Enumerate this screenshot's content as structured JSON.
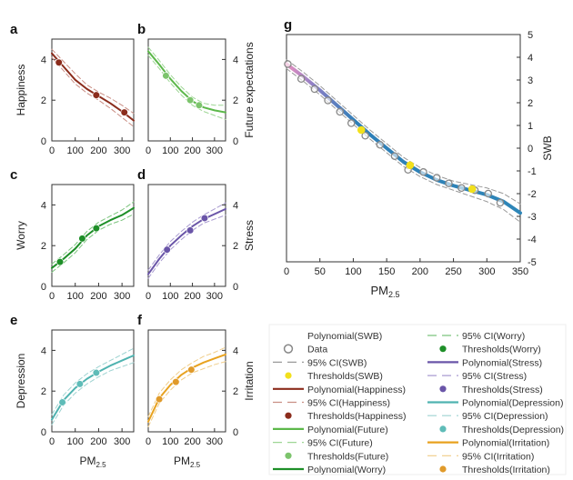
{
  "chart_data": [
    {
      "id": "a",
      "panel_label": "a",
      "type": "line",
      "ylabel": "Happiness",
      "ylabel_side": "left",
      "xlabel": "",
      "xlim": [
        0,
        350
      ],
      "ylim": [
        0,
        5
      ],
      "xticks": [
        0,
        100,
        200,
        300
      ],
      "yticks": [
        0,
        2,
        4
      ],
      "colors": {
        "line": "#8b2c1c",
        "ci": "#c98e84",
        "threshold": "#8b2c1c"
      },
      "x": [
        0,
        50,
        100,
        150,
        200,
        250,
        300,
        350
      ],
      "series": [
        {
          "values": [
            4.3,
            3.65,
            3.0,
            2.55,
            2.2,
            1.85,
            1.45,
            1.0
          ]
        },
        {
          "role": "ci_upper",
          "values": [
            4.5,
            3.9,
            3.3,
            2.75,
            2.4,
            2.1,
            1.75,
            1.35
          ]
        },
        {
          "role": "ci_lower",
          "values": [
            4.1,
            3.45,
            2.8,
            2.35,
            2.0,
            1.6,
            1.15,
            0.7
          ]
        }
      ],
      "thresholds": [
        {
          "x": 30,
          "y": 3.85
        },
        {
          "x": 190,
          "y": 2.25
        },
        {
          "x": 310,
          "y": 1.4
        }
      ]
    },
    {
      "id": "b",
      "panel_label": "b",
      "type": "line",
      "ylabel": "Future expectations",
      "ylabel_side": "right",
      "xlabel": "",
      "xlim": [
        0,
        350
      ],
      "ylim": [
        0,
        5
      ],
      "xticks": [
        0,
        100,
        200,
        300
      ],
      "yticks": [
        0,
        2,
        4
      ],
      "colors": {
        "line": "#5cb84a",
        "ci": "#9ed695",
        "threshold": "#7cc46c"
      },
      "x": [
        0,
        50,
        100,
        150,
        200,
        250,
        300,
        350
      ],
      "series": [
        {
          "values": [
            4.4,
            3.75,
            3.05,
            2.45,
            1.95,
            1.65,
            1.5,
            1.4
          ]
        },
        {
          "role": "ci_upper",
          "values": [
            4.6,
            3.95,
            3.25,
            2.65,
            2.15,
            1.85,
            1.75,
            1.75
          ]
        },
        {
          "role": "ci_lower",
          "values": [
            4.2,
            3.55,
            2.85,
            2.25,
            1.75,
            1.45,
            1.25,
            1.05
          ]
        }
      ],
      "thresholds": [
        {
          "x": 80,
          "y": 3.2
        },
        {
          "x": 190,
          "y": 2.0
        },
        {
          "x": 230,
          "y": 1.75
        }
      ]
    },
    {
      "id": "c",
      "panel_label": "c",
      "type": "line",
      "ylabel": "Worry",
      "ylabel_side": "left",
      "xlabel": "",
      "xlim": [
        0,
        350
      ],
      "ylim": [
        0,
        5
      ],
      "xticks": [
        0,
        100,
        200,
        300
      ],
      "yticks": [
        0,
        2,
        4
      ],
      "colors": {
        "line": "#1e8f28",
        "ci": "#7cc47e",
        "threshold": "#1e8f28"
      },
      "x": [
        0,
        50,
        100,
        150,
        200,
        250,
        300,
        350
      ],
      "series": [
        {
          "values": [
            0.9,
            1.35,
            1.85,
            2.5,
            2.95,
            3.25,
            3.5,
            3.85
          ]
        },
        {
          "role": "ci_upper",
          "values": [
            1.1,
            1.55,
            2.05,
            2.7,
            3.15,
            3.45,
            3.75,
            4.15
          ]
        },
        {
          "role": "ci_lower",
          "values": [
            0.7,
            1.15,
            1.65,
            2.3,
            2.75,
            3.05,
            3.25,
            3.55
          ]
        }
      ],
      "thresholds": [
        {
          "x": 35,
          "y": 1.2
        },
        {
          "x": 130,
          "y": 2.35
        },
        {
          "x": 190,
          "y": 2.85
        }
      ]
    },
    {
      "id": "d",
      "panel_label": "d",
      "type": "line",
      "ylabel": "Stress",
      "ylabel_side": "right",
      "xlabel": "",
      "xlim": [
        0,
        350
      ],
      "ylim": [
        0,
        5
      ],
      "xticks": [
        0,
        100,
        200,
        300
      ],
      "yticks": [
        0,
        2,
        4
      ],
      "colors": {
        "line": "#6a55a8",
        "ci": "#a99bd0",
        "threshold": "#6a55a8"
      },
      "x": [
        0,
        50,
        100,
        150,
        200,
        250,
        300,
        350
      ],
      "series": [
        {
          "values": [
            0.6,
            1.35,
            2.0,
            2.5,
            2.95,
            3.3,
            3.55,
            3.8
          ]
        },
        {
          "role": "ci_upper",
          "values": [
            0.8,
            1.55,
            2.2,
            2.7,
            3.15,
            3.5,
            3.8,
            4.1
          ]
        },
        {
          "role": "ci_lower",
          "values": [
            0.4,
            1.15,
            1.8,
            2.3,
            2.75,
            3.1,
            3.3,
            3.5
          ]
        }
      ],
      "thresholds": [
        {
          "x": 85,
          "y": 1.8
        },
        {
          "x": 190,
          "y": 2.75
        },
        {
          "x": 255,
          "y": 3.35
        }
      ]
    },
    {
      "id": "e",
      "panel_label": "e",
      "type": "line",
      "ylabel": "Depression",
      "ylabel_side": "left",
      "xlabel": "PM2.5",
      "xlim": [
        0,
        350
      ],
      "ylim": [
        0,
        5
      ],
      "xticks": [
        0,
        100,
        200,
        300
      ],
      "yticks": [
        0,
        2,
        4
      ],
      "colors": {
        "line": "#4fb3b0",
        "ci": "#9ed3d1",
        "threshold": "#5fbcb8"
      },
      "x": [
        0,
        50,
        100,
        150,
        200,
        250,
        300,
        350
      ],
      "series": [
        {
          "values": [
            0.6,
            1.55,
            2.15,
            2.6,
            2.95,
            3.25,
            3.5,
            3.75
          ]
        },
        {
          "role": "ci_upper",
          "values": [
            0.85,
            1.8,
            2.4,
            2.85,
            3.2,
            3.5,
            3.8,
            4.1
          ]
        },
        {
          "role": "ci_lower",
          "values": [
            0.35,
            1.3,
            1.9,
            2.35,
            2.7,
            3.0,
            3.2,
            3.4
          ]
        }
      ],
      "thresholds": [
        {
          "x": 45,
          "y": 1.45
        },
        {
          "x": 120,
          "y": 2.35
        },
        {
          "x": 190,
          "y": 2.9
        }
      ]
    },
    {
      "id": "f",
      "panel_label": "f",
      "type": "line",
      "ylabel": "Irritation",
      "ylabel_side": "right",
      "xlabel": "PM2.5",
      "xlim": [
        0,
        350
      ],
      "ylim": [
        0,
        5
      ],
      "xticks": [
        0,
        100,
        200,
        300
      ],
      "yticks": [
        0,
        2,
        4
      ],
      "colors": {
        "line": "#e8a21f",
        "ci": "#f0cd88",
        "threshold": "#e09a2a"
      },
      "x": [
        0,
        50,
        100,
        150,
        200,
        250,
        300,
        350
      ],
      "series": [
        {
          "values": [
            0.5,
            1.65,
            2.3,
            2.8,
            3.15,
            3.4,
            3.6,
            3.8
          ]
        },
        {
          "role": "ci_upper",
          "values": [
            0.75,
            1.9,
            2.55,
            3.05,
            3.4,
            3.7,
            3.9,
            4.15
          ]
        },
        {
          "role": "ci_lower",
          "values": [
            0.25,
            1.4,
            2.05,
            2.55,
            2.9,
            3.1,
            3.3,
            3.45
          ]
        }
      ],
      "thresholds": [
        {
          "x": 50,
          "y": 1.6
        },
        {
          "x": 125,
          "y": 2.45
        },
        {
          "x": 195,
          "y": 3.05
        }
      ]
    },
    {
      "id": "g",
      "panel_label": "g",
      "type": "line",
      "ylabel": "SWB",
      "ylabel_side": "right",
      "xlabel": "PM2.5",
      "xlim": [
        0,
        350
      ],
      "ylim": [
        -5,
        5
      ],
      "xticks": [
        0,
        50,
        100,
        150,
        200,
        250,
        300,
        350
      ],
      "yticks": [
        -5,
        -4,
        -3,
        -2,
        -1,
        0,
        1,
        2,
        3,
        4,
        5
      ],
      "colors": {
        "line": "#2e7fb8",
        "line_start": "#e98fc0",
        "ci": "#999999",
        "data": "#888888",
        "threshold": "#f2e01c"
      },
      "x": [
        0,
        25,
        50,
        75,
        100,
        125,
        150,
        175,
        200,
        225,
        250,
        275,
        300,
        325,
        350
      ],
      "series": [
        {
          "name": "Polynomial(SWB)",
          "values": [
            3.7,
            3.15,
            2.55,
            1.9,
            1.25,
            0.6,
            0.0,
            -0.6,
            -1.05,
            -1.4,
            -1.65,
            -1.85,
            -2.05,
            -2.35,
            -2.85
          ]
        },
        {
          "role": "ci_upper",
          "values": [
            3.9,
            3.35,
            2.75,
            2.1,
            1.45,
            0.8,
            0.2,
            -0.4,
            -0.85,
            -1.2,
            -1.45,
            -1.6,
            -1.75,
            -2.0,
            -2.45
          ]
        },
        {
          "role": "ci_lower",
          "values": [
            3.5,
            2.95,
            2.35,
            1.7,
            1.05,
            0.4,
            -0.2,
            -0.8,
            -1.25,
            -1.6,
            -1.85,
            -2.1,
            -2.35,
            -2.7,
            -3.25
          ]
        }
      ],
      "data_points": [
        {
          "x": 2,
          "y": 3.7
        },
        {
          "x": 22,
          "y": 3.05
        },
        {
          "x": 42,
          "y": 2.6
        },
        {
          "x": 62,
          "y": 2.1
        },
        {
          "x": 80,
          "y": 1.6
        },
        {
          "x": 97,
          "y": 1.1
        },
        {
          "x": 118,
          "y": 0.55
        },
        {
          "x": 140,
          "y": 0.15
        },
        {
          "x": 162,
          "y": -0.35
        },
        {
          "x": 182,
          "y": -0.95
        },
        {
          "x": 205,
          "y": -1.05
        },
        {
          "x": 225,
          "y": -1.3
        },
        {
          "x": 243,
          "y": -1.55
        },
        {
          "x": 262,
          "y": -1.75
        },
        {
          "x": 282,
          "y": -1.85
        },
        {
          "x": 302,
          "y": -2.0
        },
        {
          "x": 320,
          "y": -2.4
        }
      ],
      "thresholds": [
        {
          "x": 112,
          "y": 0.8
        },
        {
          "x": 185,
          "y": -0.75
        },
        {
          "x": 278,
          "y": -1.8
        }
      ]
    }
  ],
  "legend": {
    "col1": [
      {
        "label": "Polynomial(SWB)",
        "kind": "gradient",
        "color": "#2e7fb8"
      },
      {
        "label": "Data",
        "kind": "open-circle",
        "color": "#888888"
      },
      {
        "label": "95% CI(SWB)",
        "kind": "dash",
        "color": "#999999"
      },
      {
        "label": "Thresholds(SWB)",
        "kind": "dot",
        "color": "#f2e01c"
      },
      {
        "label": "Polynomial(Happiness)",
        "kind": "line",
        "color": "#8b2c1c"
      },
      {
        "label": "95% CI(Happiness)",
        "kind": "dash",
        "color": "#c98e84"
      },
      {
        "label": "Thresholds(Happiness)",
        "kind": "dot",
        "color": "#8b2c1c"
      },
      {
        "label": "Polynomial(Future)",
        "kind": "line",
        "color": "#5cb84a"
      },
      {
        "label": "95% CI(Future)",
        "kind": "dash",
        "color": "#9ed695"
      },
      {
        "label": "Thresholds(Future)",
        "kind": "dot",
        "color": "#7cc46c"
      },
      {
        "label": "Polynomial(Worry)",
        "kind": "line",
        "color": "#1e8f28"
      }
    ],
    "col2": [
      {
        "label": "95% CI(Worry)",
        "kind": "dash",
        "color": "#7cc47e"
      },
      {
        "label": "Thresholds(Worry)",
        "kind": "dot",
        "color": "#1e8f28"
      },
      {
        "label": "Polynomial(Stress)",
        "kind": "line",
        "color": "#6a55a8"
      },
      {
        "label": "95% CI(Stress)",
        "kind": "dash",
        "color": "#a99bd0"
      },
      {
        "label": "Thresholds(Stress)",
        "kind": "dot",
        "color": "#6a55a8"
      },
      {
        "label": "Polynomial(Depression)",
        "kind": "line",
        "color": "#4fb3b0"
      },
      {
        "label": "95% CI(Depression)",
        "kind": "dash",
        "color": "#9ed3d1"
      },
      {
        "label": "Thresholds(Depression)",
        "kind": "dot",
        "color": "#5fbcb8"
      },
      {
        "label": "Polynomial(Irritation)",
        "kind": "line",
        "color": "#e8a21f"
      },
      {
        "label": "95% CI(Irritation)",
        "kind": "dash",
        "color": "#f0cd88"
      },
      {
        "label": "Thresholds(Irritation)",
        "kind": "dot",
        "color": "#e09a2a"
      }
    ]
  }
}
